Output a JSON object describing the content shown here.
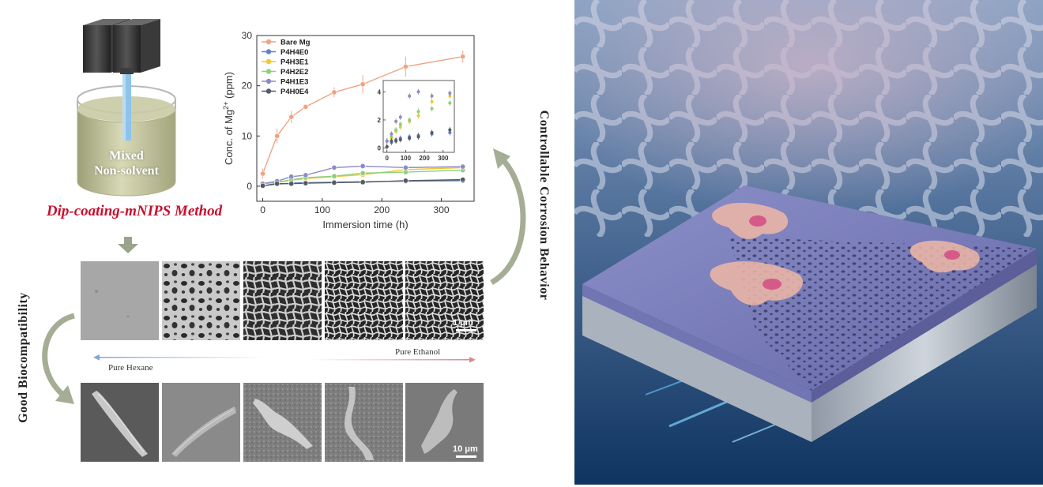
{
  "schematic": {
    "container_label": "Mixed Non-solvent",
    "container_label_line1": "Mixed",
    "container_label_line2": "Non-solvent",
    "method_label": "Dip-coating-mNIPS Method"
  },
  "side_labels": {
    "right": "Controllable Corrosion Behavior",
    "left": "Good Biocompatibility"
  },
  "sem_row": {
    "scale_bar": "1 μm",
    "left_solvent": "Pure Hexane",
    "right_solvent": "Pure Ethanol"
  },
  "cell_row": {
    "scale_bar": "10 μm"
  },
  "colors": {
    "method": "#c8102e",
    "bare_mg": "#f0a385",
    "P4H4E0": "#5b84c4",
    "P4H3E1": "#f2c635",
    "P4H2E2": "#8ed07a",
    "P4H1E3": "#8d8bc6",
    "P4H0E4": "#555a63"
  },
  "chart_data": {
    "type": "line",
    "xlabel": "Immersion time (h)",
    "ylabel_prefix": "Conc. of Mg",
    "ylabel_sup": "2+",
    "ylabel_suffix": " (ppm)",
    "xlim": [
      -10,
      355
    ],
    "ylim": [
      -3,
      30
    ],
    "xticks": [
      0,
      100,
      200,
      300
    ],
    "yticks": [
      0,
      10,
      20,
      30
    ],
    "x": [
      0,
      24,
      48,
      72,
      120,
      168,
      240,
      336
    ],
    "series": [
      {
        "name": "Bare Mg",
        "color": "#f0a385",
        "values": [
          2.5,
          10.0,
          13.8,
          15.8,
          18.7,
          20.3,
          23.8,
          25.8
        ],
        "err": [
          1.0,
          1.5,
          1.2,
          0.5,
          1.0,
          1.8,
          2.0,
          1.2
        ]
      },
      {
        "name": "P4H4E0",
        "color": "#5b84c4",
        "values": [
          0.1,
          0.4,
          0.6,
          0.7,
          0.8,
          0.9,
          1.0,
          1.1
        ]
      },
      {
        "name": "P4H3E1",
        "color": "#f2c635",
        "values": [
          0.5,
          0.7,
          1.2,
          1.5,
          1.9,
          2.3,
          3.3,
          3.7
        ]
      },
      {
        "name": "P4H2E2",
        "color": "#8ed07a",
        "values": [
          0.5,
          0.8,
          1.3,
          1.7,
          2.0,
          2.6,
          2.8,
          3.2
        ]
      },
      {
        "name": "P4H1E3",
        "color": "#8d8bc6",
        "values": [
          0.5,
          1.0,
          1.9,
          2.2,
          3.7,
          4.0,
          3.7,
          3.9
        ]
      },
      {
        "name": "P4H0E4",
        "color": "#555a63",
        "values": [
          0.1,
          0.5,
          0.5,
          0.6,
          0.7,
          0.8,
          1.1,
          1.3
        ]
      }
    ],
    "inset": {
      "xlim": [
        -20,
        360
      ],
      "ylim": [
        -0.3,
        4.8
      ],
      "xticks": [
        0,
        100,
        200,
        300
      ],
      "yticks": [
        0,
        2,
        4
      ]
    }
  }
}
